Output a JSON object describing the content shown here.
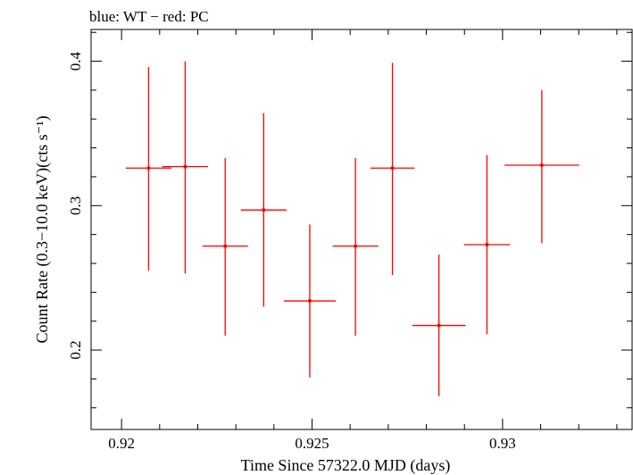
{
  "chart_data": {
    "type": "scatter",
    "title": "blue: WT − red: PC",
    "xlabel": "Time Since 57322.0 MJD (days)",
    "ylabel": "Count Rate (0.3−10.0 keV)(cts s⁻¹)",
    "xlim": [
      0.9192,
      0.9334
    ],
    "ylim": [
      0.145,
      0.422
    ],
    "xticks": [
      {
        "value": 0.92,
        "label": "0.92"
      },
      {
        "value": 0.925,
        "label": "0.925"
      },
      {
        "value": 0.93,
        "label": "0.93"
      }
    ],
    "yticks": [
      {
        "value": 0.2,
        "label": "0.2"
      },
      {
        "value": 0.3,
        "label": "0.3"
      },
      {
        "value": 0.4,
        "label": "0.4"
      }
    ],
    "grid": false,
    "series": [
      {
        "color": "#ff0000",
        "points": [
          {
            "x": 0.92071,
            "xerr": 0.0006,
            "y": 0.326,
            "ylo": 0.255,
            "yhi": 0.396
          },
          {
            "x": 0.92167,
            "xerr": 0.0006,
            "y": 0.327,
            "ylo": 0.253,
            "yhi": 0.4
          },
          {
            "x": 0.92272,
            "xerr": 0.0006,
            "y": 0.272,
            "ylo": 0.21,
            "yhi": 0.333
          },
          {
            "x": 0.92373,
            "xerr": 0.0006,
            "y": 0.297,
            "ylo": 0.23,
            "yhi": 0.364
          },
          {
            "x": 0.92494,
            "xerr": 0.00068,
            "y": 0.234,
            "ylo": 0.181,
            "yhi": 0.287
          },
          {
            "x": 0.92614,
            "xerr": 0.0006,
            "y": 0.272,
            "ylo": 0.21,
            "yhi": 0.333
          },
          {
            "x": 0.92711,
            "xerr": 0.00058,
            "y": 0.326,
            "ylo": 0.252,
            "yhi": 0.399
          },
          {
            "x": 0.92833,
            "xerr": 0.0007,
            "y": 0.217,
            "ylo": 0.168,
            "yhi": 0.266
          },
          {
            "x": 0.92959,
            "xerr": 0.0006,
            "y": 0.273,
            "ylo": 0.211,
            "yhi": 0.335
          },
          {
            "x": 0.93103,
            "xerr": 0.00098,
            "y": 0.328,
            "ylo": 0.274,
            "yhi": 0.38
          }
        ]
      }
    ]
  }
}
